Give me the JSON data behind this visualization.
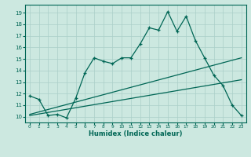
{
  "xlabel": "Humidex (Indice chaleur)",
  "bg_color": "#cce8e0",
  "grid_color": "#aacfc8",
  "line_color": "#006655",
  "xlim": [
    -0.5,
    23.5
  ],
  "ylim": [
    9.5,
    19.7
  ],
  "yticks": [
    10,
    11,
    12,
    13,
    14,
    15,
    16,
    17,
    18,
    19
  ],
  "xticks": [
    0,
    1,
    2,
    3,
    4,
    5,
    6,
    7,
    8,
    9,
    10,
    11,
    12,
    13,
    14,
    15,
    16,
    17,
    18,
    19,
    20,
    21,
    22,
    23
  ],
  "line1_x": [
    0,
    1,
    2,
    3,
    4,
    5,
    6,
    7,
    8,
    9,
    10,
    11,
    12,
    13,
    14,
    15,
    16,
    17,
    18,
    19,
    20,
    21,
    22,
    23
  ],
  "line1_y": [
    11.8,
    11.5,
    10.1,
    10.2,
    9.9,
    11.6,
    13.8,
    15.1,
    14.8,
    14.6,
    15.1,
    15.1,
    16.3,
    17.7,
    17.5,
    19.1,
    17.4,
    18.7,
    16.6,
    15.1,
    13.6,
    12.7,
    11.0,
    10.1
  ],
  "line2_x": [
    0,
    23
  ],
  "line2_y": [
    10.2,
    15.1
  ],
  "line3_x": [
    0,
    23
  ],
  "line3_y": [
    10.1,
    13.2
  ]
}
